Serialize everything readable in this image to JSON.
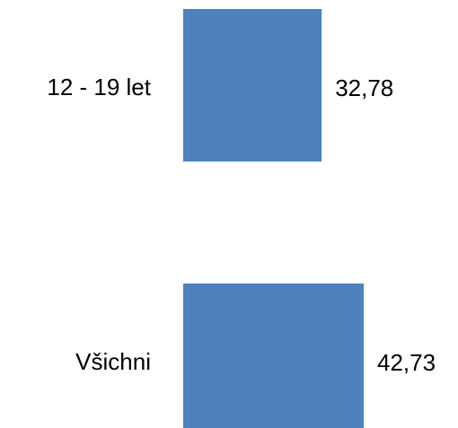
{
  "chart_data": {
    "type": "bar",
    "orientation": "horizontal",
    "categories": [
      "12 - 19 let",
      "Všichni"
    ],
    "values": [
      32.78,
      42.73
    ],
    "value_labels": [
      "32,78",
      "42,73"
    ],
    "color": "#4f81bd"
  }
}
